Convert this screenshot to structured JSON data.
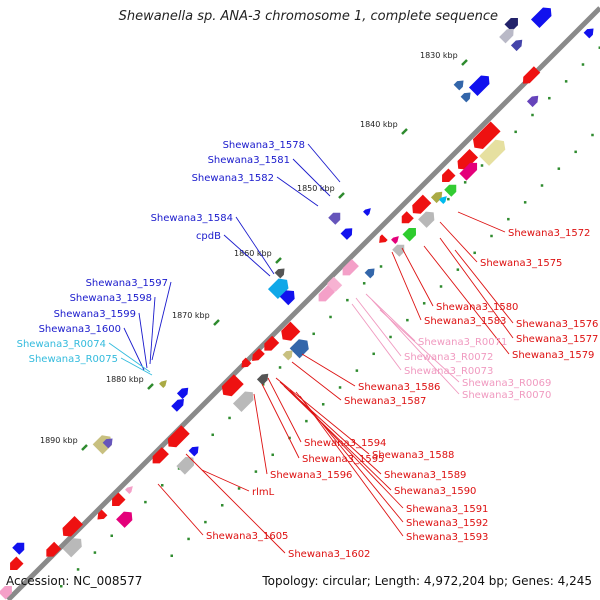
{
  "title": "Shewanella sp. ANA-3 chromosome 1, complete sequence",
  "footer": {
    "accession": "Accession: NC_008577",
    "summary": "Topology: circular; Length: 4,972,204 bp; Genes: 4,245"
  },
  "colors": {
    "backbone": "#8a8a8a",
    "tick": "#2e8b2e",
    "upper_label": "#1a1acc",
    "rna_label": "#33bbdd",
    "lower_label": "#dd1111",
    "pseudo_label": "#f09ac0"
  },
  "ticks": [
    "1830 kbp",
    "1840 kbp",
    "1850 kbp",
    "1860 kbp",
    "1870 kbp",
    "1880 kbp",
    "1890 kbp"
  ],
  "labels_upper": [
    "Shewana3_1578",
    "Shewana3_1581",
    "Shewana3_1582",
    "Shewana3_1584",
    "cpdB",
    "Shewana3_1597",
    "Shewana3_1598",
    "Shewana3_1599",
    "Shewana3_1600"
  ],
  "labels_rna": [
    "Shewana3_R0074",
    "Shewana3_R0075"
  ],
  "labels_right": [
    "Shewana3_1572",
    "Shewana3_1575",
    "Shewana3_1580",
    "Shewana3_1583",
    "Shewana3_1576",
    "Shewana3_1577",
    "Shewana3_1579"
  ],
  "labels_pseudo": [
    "Shewana3_R0071",
    "Shewana3_R0072",
    "Shewana3_R0073",
    "Shewana3_R0069",
    "Shewana3_R0070"
  ],
  "labels_lower": [
    "Shewana3_1586",
    "Shewana3_1587",
    "Shewana3_1594",
    "Shewana3_1588",
    "Shewana3_1595",
    "Shewana3_1589",
    "Shewana3_1596",
    "Shewana3_1590",
    "rlmL",
    "Shewana3_1591",
    "Shewana3_1592",
    "Shewana3_1593",
    "Shewana3_1605",
    "Shewana3_1602"
  ]
}
